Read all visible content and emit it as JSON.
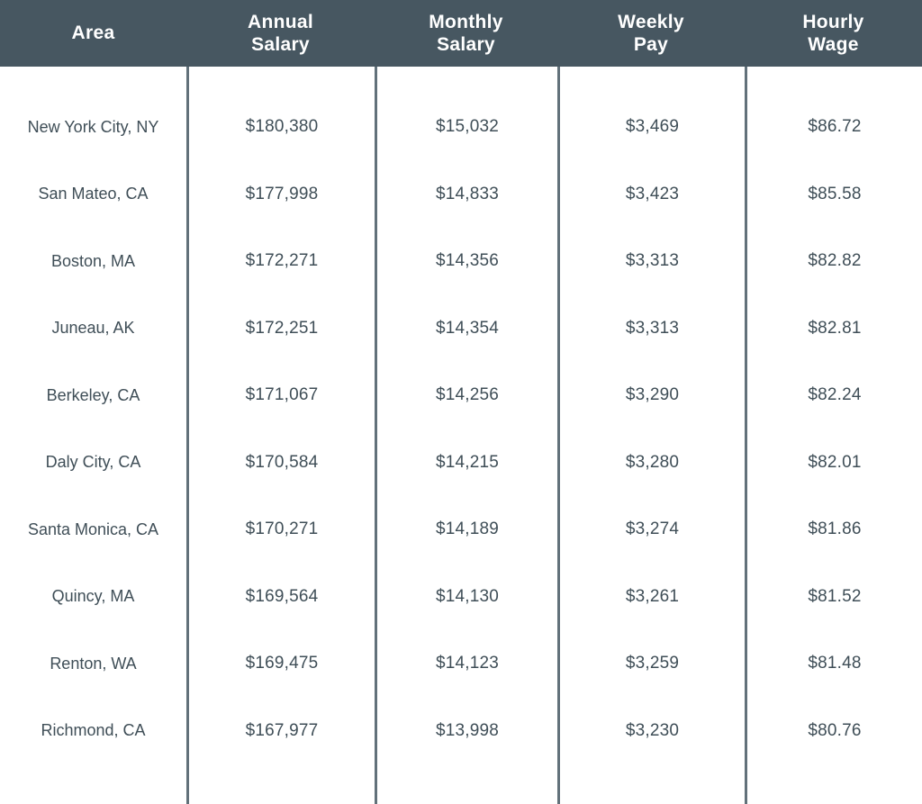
{
  "colors": {
    "header_bg": "#475761",
    "header_text": "#FFFFFF",
    "divider": "#62717A",
    "body_text": "#3F4E57",
    "background": "#FFFFFF"
  },
  "table": {
    "columns": [
      {
        "id": "area",
        "lines": [
          "Area"
        ]
      },
      {
        "id": "annual-salary",
        "lines": [
          "Annual",
          "Salary"
        ]
      },
      {
        "id": "monthly-salary",
        "lines": [
          "Monthly",
          "Salary"
        ]
      },
      {
        "id": "weekly-pay",
        "lines": [
          "Weekly",
          "Pay"
        ]
      },
      {
        "id": "hourly-wage",
        "lines": [
          "Hourly",
          "Wage"
        ]
      }
    ],
    "rows": [
      [
        "New York City, NY",
        "$180,380",
        "$15,032",
        "$3,469",
        "$86.72"
      ],
      [
        "San Mateo, CA",
        "$177,998",
        "$14,833",
        "$3,423",
        "$85.58"
      ],
      [
        "Boston, MA",
        "$172,271",
        "$14,356",
        "$3,313",
        "$82.82"
      ],
      [
        "Juneau, AK",
        "$172,251",
        "$14,354",
        "$3,313",
        "$82.81"
      ],
      [
        "Berkeley, CA",
        "$171,067",
        "$14,256",
        "$3,290",
        "$82.24"
      ],
      [
        "Daly City, CA",
        "$170,584",
        "$14,215",
        "$3,280",
        "$82.01"
      ],
      [
        "Santa Monica, CA",
        "$170,271",
        "$14,189",
        "$3,274",
        "$81.86"
      ],
      [
        "Quincy, MA",
        "$169,564",
        "$14,130",
        "$3,261",
        "$81.52"
      ],
      [
        "Renton, WA",
        "$169,475",
        "$14,123",
        "$3,259",
        "$81.48"
      ],
      [
        "Richmond, CA",
        "$167,977",
        "$13,998",
        "$3,230",
        "$80.76"
      ]
    ]
  },
  "chart_data": {
    "type": "table",
    "title": "",
    "columns": [
      "Area",
      "Annual Salary",
      "Monthly Salary",
      "Weekly Pay",
      "Hourly Wage"
    ],
    "rows": [
      {
        "area": "New York City, NY",
        "annual_salary": 180380,
        "monthly_salary": 15032,
        "weekly_pay": 3469,
        "hourly_wage": 86.72
      },
      {
        "area": "San Mateo, CA",
        "annual_salary": 177998,
        "monthly_salary": 14833,
        "weekly_pay": 3423,
        "hourly_wage": 85.58
      },
      {
        "area": "Boston, MA",
        "annual_salary": 172271,
        "monthly_salary": 14356,
        "weekly_pay": 3313,
        "hourly_wage": 82.82
      },
      {
        "area": "Juneau, AK",
        "annual_salary": 172251,
        "monthly_salary": 14354,
        "weekly_pay": 3313,
        "hourly_wage": 82.81
      },
      {
        "area": "Berkeley, CA",
        "annual_salary": 171067,
        "monthly_salary": 14256,
        "weekly_pay": 3290,
        "hourly_wage": 82.24
      },
      {
        "area": "Daly City, CA",
        "annual_salary": 170584,
        "monthly_salary": 14215,
        "weekly_pay": 3280,
        "hourly_wage": 82.01
      },
      {
        "area": "Santa Monica, CA",
        "annual_salary": 170271,
        "monthly_salary": 14189,
        "weekly_pay": 3274,
        "hourly_wage": 81.86
      },
      {
        "area": "Quincy, MA",
        "annual_salary": 169564,
        "monthly_salary": 14130,
        "weekly_pay": 3261,
        "hourly_wage": 81.52
      },
      {
        "area": "Renton, WA",
        "annual_salary": 169475,
        "monthly_salary": 14123,
        "weekly_pay": 3259,
        "hourly_wage": 81.48
      },
      {
        "area": "Richmond, CA",
        "annual_salary": 167977,
        "monthly_salary": 13998,
        "weekly_pay": 3230,
        "hourly_wage": 80.76
      }
    ]
  }
}
